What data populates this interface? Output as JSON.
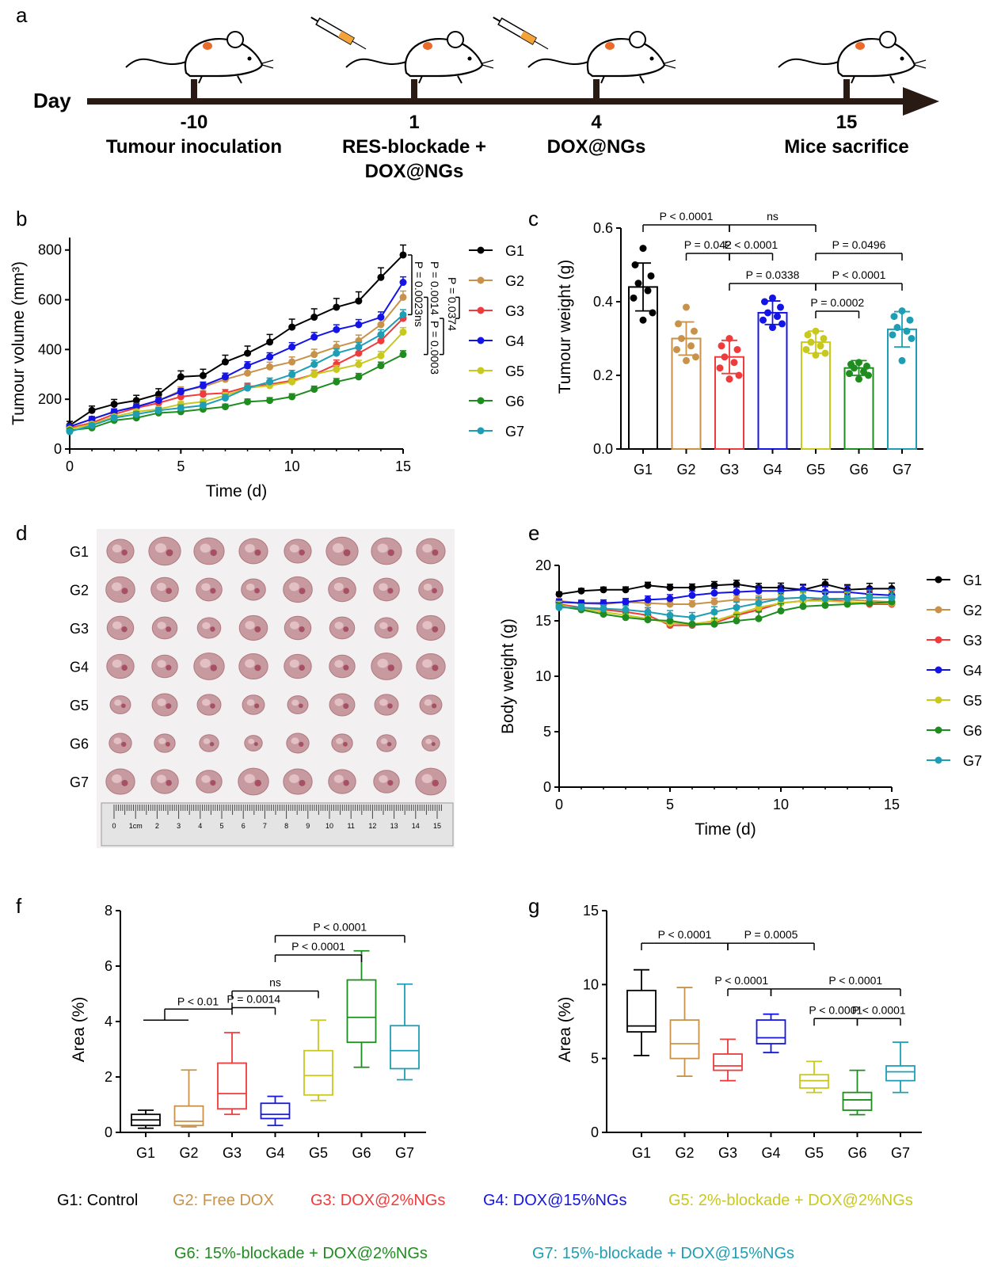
{
  "colors": {
    "G1": "#000000",
    "G2": "#c8924a",
    "G3": "#ef3b3b",
    "G4": "#1414e6",
    "G5": "#c8c81e",
    "G6": "#1e8c1e",
    "G7": "#1e9eb4"
  },
  "panel_labels": [
    "a",
    "b",
    "c",
    "d",
    "e",
    "f",
    "g"
  ],
  "timeline": {
    "day_label": "Day",
    "events": [
      {
        "day": "-10",
        "line1": "Tumour inoculation",
        "line2": "",
        "syringe": false
      },
      {
        "day": "1",
        "line1": "RES-blockade +",
        "line2": "DOX@NGs",
        "syringe": true
      },
      {
        "day": "4",
        "line1": "DOX@NGs",
        "line2": "",
        "syringe": true
      },
      {
        "day": "15",
        "line1": "Mice sacrifice",
        "line2": "",
        "syringe": false
      }
    ]
  },
  "groups": [
    "G1",
    "G2",
    "G3",
    "G4",
    "G5",
    "G6",
    "G7"
  ],
  "photo": {
    "row_labels": [
      "G1",
      "G2",
      "G3",
      "G4",
      "G5",
      "G6",
      "G7"
    ],
    "ruler_labels": [
      "0",
      "1cm",
      "2",
      "3",
      "4",
      "5",
      "6",
      "7",
      "8",
      "9",
      "10",
      "11",
      "12",
      "13",
      "14",
      "15"
    ]
  },
  "group_legend": [
    {
      "key": "G1",
      "text": "G1: Control"
    },
    {
      "key": "G2",
      "text": "G2: Free DOX"
    },
    {
      "key": "G3",
      "text": "G3: DOX@2%NGs"
    },
    {
      "key": "G4",
      "text": "G4: DOX@15%NGs"
    },
    {
      "key": "G5",
      "text": "G5: 2%-blockade + DOX@2%NGs"
    },
    {
      "key": "G6",
      "text": "G6: 15%-blockade + DOX@2%NGs"
    },
    {
      "key": "G7",
      "text": "G7: 15%-blockade + DOX@15%NGs"
    }
  ],
  "chart_data": [
    {
      "panel": "b",
      "type": "line",
      "xlabel": "Time (d)",
      "ylabel": "Tumour volume (mm³)",
      "xlim": [
        0,
        15
      ],
      "ylim": [
        0,
        850
      ],
      "xticks": [
        0,
        5,
        10,
        15
      ],
      "yticks": [
        0,
        200,
        400,
        600,
        800
      ],
      "x": [
        0,
        1,
        2,
        3,
        4,
        5,
        6,
        7,
        8,
        9,
        10,
        11,
        12,
        13,
        14,
        15
      ],
      "series": [
        {
          "name": "G1",
          "values": [
            95,
            155,
            180,
            195,
            220,
            290,
            295,
            350,
            385,
            430,
            490,
            530,
            570,
            595,
            690,
            780
          ],
          "err": 40
        },
        {
          "name": "G2",
          "values": [
            90,
            120,
            150,
            170,
            195,
            235,
            250,
            280,
            305,
            330,
            350,
            380,
            410,
            435,
            500,
            610
          ],
          "err": 25
        },
        {
          "name": "G3",
          "values": [
            85,
            105,
            140,
            165,
            185,
            210,
            220,
            225,
            250,
            260,
            275,
            300,
            340,
            385,
            435,
            525
          ],
          "err": 20
        },
        {
          "name": "G4",
          "values": [
            90,
            120,
            150,
            170,
            195,
            230,
            255,
            290,
            335,
            370,
            410,
            450,
            480,
            500,
            530,
            670
          ],
          "err": 22
        },
        {
          "name": "G5",
          "values": [
            80,
            100,
            130,
            150,
            160,
            180,
            190,
            215,
            245,
            255,
            270,
            300,
            320,
            340,
            375,
            470
          ],
          "err": 18
        },
        {
          "name": "G6",
          "values": [
            75,
            85,
            115,
            125,
            145,
            150,
            160,
            170,
            190,
            195,
            210,
            240,
            270,
            290,
            335,
            380
          ],
          "err": 15
        },
        {
          "name": "G7",
          "values": [
            70,
            95,
            125,
            140,
            155,
            165,
            175,
            205,
            245,
            270,
            300,
            340,
            385,
            410,
            460,
            540
          ],
          "err": 20
        }
      ],
      "annotations": [
        {
          "text": "P = 0.0374",
          "between": [
            "G2",
            "G3"
          ]
        },
        {
          "text": "ns",
          "between": [
            "G1",
            "G7"
          ]
        },
        {
          "text": "P = 0.0023",
          "between": [
            "G1",
            "G7"
          ]
        },
        {
          "text": "P = 0.0014",
          "between": [
            "G2",
            "G6"
          ]
        },
        {
          "text": "P = 0.0003",
          "between": [
            "G3",
            "G6"
          ]
        }
      ]
    },
    {
      "panel": "c",
      "type": "bar",
      "ylabel": "Tumour weight (g)",
      "ylim": [
        0,
        0.6
      ],
      "yticks": [
        "0.0",
        "0.2",
        "0.4",
        "0.6"
      ],
      "categories": [
        "G1",
        "G2",
        "G3",
        "G4",
        "G5",
        "G6",
        "G7"
      ],
      "values": [
        0.44,
        0.3,
        0.25,
        0.37,
        0.29,
        0.22,
        0.325
      ],
      "sd": [
        0.065,
        0.045,
        0.045,
        0.032,
        0.03,
        0.02,
        0.048
      ],
      "points": [
        [
          0.545,
          0.5,
          0.47,
          0.45,
          0.43,
          0.41,
          0.37,
          0.35
        ],
        [
          0.385,
          0.34,
          0.32,
          0.3,
          0.28,
          0.27,
          0.25,
          0.24
        ],
        [
          0.3,
          0.28,
          0.27,
          0.25,
          0.235,
          0.22,
          0.2,
          0.19
        ],
        [
          0.41,
          0.4,
          0.385,
          0.37,
          0.36,
          0.35,
          0.34,
          0.33
        ],
        [
          0.32,
          0.31,
          0.3,
          0.29,
          0.28,
          0.27,
          0.26,
          0.255
        ],
        [
          0.235,
          0.23,
          0.225,
          0.22,
          0.21,
          0.205,
          0.2,
          0.19
        ],
        [
          0.375,
          0.36,
          0.35,
          0.33,
          0.32,
          0.31,
          0.3,
          0.24
        ]
      ],
      "comparisons": [
        {
          "from": 0,
          "to": 2,
          "text": "P < 0.0001",
          "level": 1
        },
        {
          "from": 2,
          "to": 4,
          "text": "ns",
          "level": 1
        },
        {
          "from": 1,
          "to": 2,
          "text": "P = 0.042",
          "level": 2
        },
        {
          "from": 2,
          "to": 3,
          "text": "P < 0.0001",
          "level": 2
        },
        {
          "from": 4,
          "to": 6,
          "text": "P = 0.0496",
          "level": 2
        },
        {
          "from": 2,
          "to": 4,
          "text": "P = 0.0338",
          "level": 3
        },
        {
          "from": 4,
          "to": 6,
          "text": "P < 0.0001",
          "level": 3
        },
        {
          "from": 4,
          "to": 5,
          "text": "P = 0.0002",
          "level": 4
        }
      ]
    },
    {
      "panel": "e",
      "type": "line",
      "xlabel": "Time (d)",
      "ylabel": "Body weight (g)",
      "xlim": [
        0,
        15
      ],
      "ylim": [
        0,
        20
      ],
      "xticks": [
        0,
        5,
        10,
        15
      ],
      "yticks": [
        0,
        5,
        10,
        15,
        20
      ],
      "x": [
        0,
        1,
        2,
        3,
        4,
        5,
        6,
        7,
        8,
        9,
        10,
        11,
        12,
        13,
        14,
        15
      ],
      "series": [
        {
          "name": "G1",
          "values": [
            17.4,
            17.7,
            17.8,
            17.8,
            18.2,
            18.0,
            18.0,
            18.2,
            18.3,
            18.0,
            18.0,
            17.8,
            18.3,
            17.8,
            17.9,
            17.9
          ],
          "err": 0.5
        },
        {
          "name": "G2",
          "values": [
            16.8,
            16.6,
            16.5,
            16.7,
            16.6,
            16.5,
            16.5,
            16.7,
            16.9,
            16.9,
            17.0,
            17.1,
            17.0,
            16.9,
            16.8,
            16.7
          ],
          "err": 0.5
        },
        {
          "name": "G3",
          "values": [
            16.5,
            16.2,
            16.0,
            15.8,
            15.5,
            14.6,
            14.6,
            14.8,
            15.5,
            16.0,
            16.6,
            16.8,
            17.0,
            16.7,
            16.5,
            16.5
          ],
          "err": 1.2
        },
        {
          "name": "G4",
          "values": [
            16.7,
            16.6,
            16.6,
            16.7,
            16.9,
            17.0,
            17.3,
            17.5,
            17.6,
            17.7,
            17.7,
            17.8,
            17.6,
            17.6,
            17.4,
            17.3
          ],
          "err": 0.6
        },
        {
          "name": "G5",
          "values": [
            16.4,
            16.1,
            15.8,
            15.5,
            15.2,
            14.8,
            14.7,
            15.0,
            15.6,
            16.2,
            16.6,
            16.8,
            16.8,
            16.7,
            16.6,
            16.6
          ],
          "err": 0.9
        },
        {
          "name": "G6",
          "values": [
            16.3,
            16.0,
            15.6,
            15.3,
            15.1,
            15.0,
            14.7,
            14.7,
            15.0,
            15.2,
            15.9,
            16.3,
            16.4,
            16.5,
            16.6,
            16.7
          ],
          "err": 0.8
        },
        {
          "name": "G7",
          "values": [
            16.2,
            16.2,
            16.1,
            16.0,
            15.8,
            15.5,
            15.3,
            15.8,
            16.2,
            16.6,
            17.0,
            17.1,
            17.0,
            17.0,
            17.1,
            17.1
          ],
          "err": 0.7
        }
      ]
    },
    {
      "panel": "f",
      "type": "box",
      "ylabel": "Area (%)",
      "ylim": [
        0,
        8
      ],
      "yticks": [
        0,
        2,
        4,
        6,
        8
      ],
      "categories": [
        "G1",
        "G2",
        "G3",
        "G4",
        "G5",
        "G6",
        "G7"
      ],
      "boxes": [
        {
          "min": 0.15,
          "q1": 0.25,
          "median": 0.45,
          "q3": 0.65,
          "max": 0.8
        },
        {
          "min": 0.2,
          "q1": 0.25,
          "median": 0.4,
          "q3": 0.95,
          "max": 2.25
        },
        {
          "min": 0.65,
          "q1": 0.85,
          "median": 1.4,
          "q3": 2.5,
          "max": 3.6
        },
        {
          "min": 0.25,
          "q1": 0.5,
          "median": 0.65,
          "q3": 1.05,
          "max": 1.3
        },
        {
          "min": 1.15,
          "q1": 1.35,
          "median": 2.05,
          "q3": 2.95,
          "max": 4.05
        },
        {
          "min": 2.35,
          "q1": 3.25,
          "median": 4.15,
          "q3": 5.5,
          "max": 6.55
        },
        {
          "min": 1.9,
          "q1": 2.3,
          "median": 2.95,
          "q3": 3.85,
          "max": 5.35
        }
      ],
      "comparisons": [
        {
          "from": 0,
          "to": 1,
          "text": "P < 0.01",
          "kind": "g1-vs-g2g3",
          "y": 4.05
        },
        {
          "from": 2,
          "to": 3,
          "text": "P = 0.0014",
          "y": 4.05
        },
        {
          "from": 2,
          "to": 4,
          "text": "ns",
          "y": 5.1
        },
        {
          "from": 3,
          "to": 5,
          "text": "P < 0.0001",
          "y": 6.4
        },
        {
          "from": 3,
          "to": 6,
          "text": "P < 0.0001",
          "y": 7.1
        }
      ]
    },
    {
      "panel": "g",
      "type": "box",
      "ylabel": "Area (%)",
      "ylim": [
        0,
        15
      ],
      "yticks": [
        0,
        5,
        10,
        15
      ],
      "categories": [
        "G1",
        "G2",
        "G3",
        "G4",
        "G5",
        "G6",
        "G7"
      ],
      "boxes": [
        {
          "min": 5.2,
          "q1": 6.8,
          "median": 7.2,
          "q3": 9.6,
          "max": 11.0
        },
        {
          "min": 3.8,
          "q1": 5.0,
          "median": 6.0,
          "q3": 7.6,
          "max": 9.8
        },
        {
          "min": 3.5,
          "q1": 4.2,
          "median": 4.5,
          "q3": 5.3,
          "max": 6.3
        },
        {
          "min": 5.4,
          "q1": 6.0,
          "median": 6.4,
          "q3": 7.6,
          "max": 8.0
        },
        {
          "min": 2.7,
          "q1": 3.0,
          "median": 3.5,
          "q3": 3.9,
          "max": 4.8
        },
        {
          "min": 1.2,
          "q1": 1.5,
          "median": 2.2,
          "q3": 2.7,
          "max": 4.2
        },
        {
          "min": 2.7,
          "q1": 3.5,
          "median": 4.1,
          "q3": 4.5,
          "max": 6.1
        }
      ],
      "comparisons": [
        {
          "from": 0,
          "to": 2,
          "text": "P < 0.0001",
          "y": 12.8
        },
        {
          "from": 2,
          "to": 4,
          "text": "P = 0.0005",
          "y": 12.8
        },
        {
          "from": 2,
          "to": 3,
          "text": "P < 0.0001",
          "y": 9.7
        },
        {
          "from": 3,
          "to": 6,
          "text": "P < 0.0001",
          "y": 9.7
        },
        {
          "from": 4,
          "to": 5,
          "text": "P < 0.0001",
          "y": 7.7
        },
        {
          "from": 5,
          "to": 6,
          "text": "P < 0.0001",
          "y": 7.7
        }
      ]
    }
  ]
}
